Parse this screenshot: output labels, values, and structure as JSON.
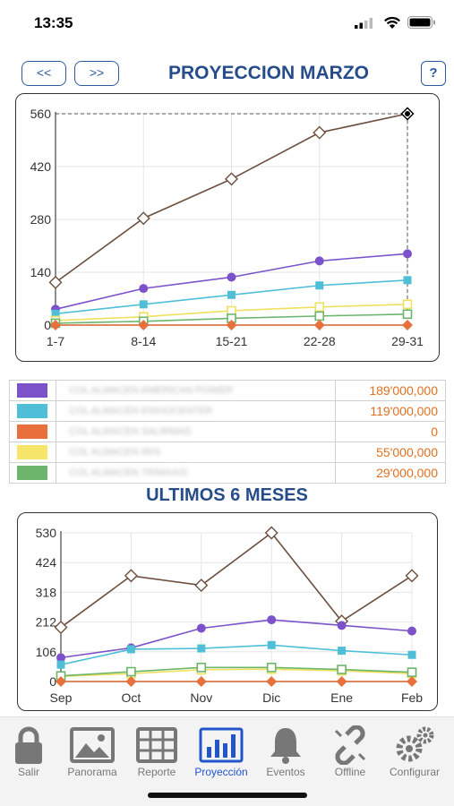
{
  "status": {
    "time": "13:35"
  },
  "nav": {
    "prev_label": "<<",
    "next_label": ">>",
    "title": "PROYECCION MARZO",
    "help_label": "?"
  },
  "chart_data": [
    {
      "type": "line",
      "categories": [
        "1-7",
        "8-14",
        "15-21",
        "22-28",
        "29-31"
      ],
      "yticks": [
        0,
        140,
        280,
        420,
        560
      ],
      "ylim": [
        0,
        560
      ],
      "grid": true,
      "series": [
        {
          "color": "#6b4f3f",
          "marker": "diamond-open",
          "values": [
            113,
            283,
            387,
            510,
            560
          ]
        },
        {
          "color": "#7b52c9",
          "marker": "circle",
          "values": [
            42,
            97,
            127,
            170,
            189
          ]
        },
        {
          "color": "#4fbfd8",
          "marker": "square",
          "values": [
            30,
            55,
            80,
            105,
            119
          ]
        },
        {
          "color": "#f0e060",
          "marker": "square-open",
          "values": [
            12,
            22,
            38,
            48,
            55
          ]
        },
        {
          "color": "#6db56d",
          "marker": "square-open",
          "values": [
            5,
            10,
            18,
            24,
            29
          ]
        },
        {
          "color": "#e8703c",
          "marker": "diamond",
          "values": [
            0,
            0,
            0,
            0,
            0
          ]
        }
      ]
    },
    {
      "type": "line",
      "categories": [
        "Sep",
        "Oct",
        "Nov",
        "Dic",
        "Ene",
        "Feb"
      ],
      "yticks": [
        0,
        106,
        212,
        318,
        424,
        530
      ],
      "ylim": [
        0,
        530
      ],
      "grid": true,
      "series": [
        {
          "color": "#6b4f3f",
          "marker": "diamond-open",
          "values": [
            193,
            377,
            343,
            530,
            215,
            377
          ]
        },
        {
          "color": "#7b52c9",
          "marker": "circle",
          "values": [
            85,
            120,
            190,
            220,
            200,
            180
          ]
        },
        {
          "color": "#4fbfd8",
          "marker": "square",
          "values": [
            60,
            115,
            118,
            130,
            110,
            95
          ]
        },
        {
          "color": "#f0e060",
          "marker": "square-open",
          "values": [
            18,
            28,
            42,
            44,
            38,
            28
          ]
        },
        {
          "color": "#6db56d",
          "marker": "square-open",
          "values": [
            20,
            35,
            50,
            50,
            43,
            33
          ]
        },
        {
          "color": "#e8703c",
          "marker": "diamond",
          "values": [
            0,
            0,
            0,
            0,
            0,
            0
          ]
        }
      ]
    }
  ],
  "legend": [
    {
      "color": "#7b52c9",
      "name": "COL ALMACEN AMERICAN POWER",
      "value": "189'000,000"
    },
    {
      "color": "#4fbfd8",
      "name": "COL ALMACEN ENVIOCENTER",
      "value": "119'000,000"
    },
    {
      "color": "#e8703c",
      "name": "COL ALMACEN SALIRMAS",
      "value": "0"
    },
    {
      "color": "#f5e66a",
      "name": "COL ALMACEN IRIS",
      "value": "55'000,000"
    },
    {
      "color": "#6db56d",
      "name": "COL ALMACEN TRIMAXIS",
      "value": "29'000,000"
    }
  ],
  "subtitle": "ULTIMOS 6 MESES",
  "tabs": [
    {
      "label": "Salir",
      "icon": "lock-icon"
    },
    {
      "label": "Panorama",
      "icon": "image-icon"
    },
    {
      "label": "Reporte",
      "icon": "table-icon"
    },
    {
      "label": "Proyección",
      "icon": "bar-chart-icon",
      "active": true
    },
    {
      "label": "Eventos",
      "icon": "bell-icon"
    },
    {
      "label": "Offline",
      "icon": "broken-link-icon"
    },
    {
      "label": "Configurar",
      "icon": "gear-icon"
    }
  ]
}
